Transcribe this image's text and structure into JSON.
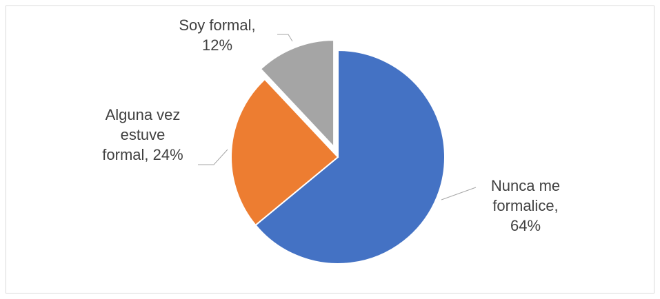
{
  "chart_data": {
    "type": "pie",
    "categories": [
      "Nunca me formalice,",
      "Alguna vez estuve formal,",
      "Soy formal,"
    ],
    "values": [
      64,
      24,
      12
    ],
    "value_labels": [
      "64%",
      "24%",
      "12%"
    ],
    "colors": [
      "#4472c4",
      "#ed7d31",
      "#a5a5a5"
    ],
    "exploded": [
      false,
      false,
      true
    ]
  }
}
